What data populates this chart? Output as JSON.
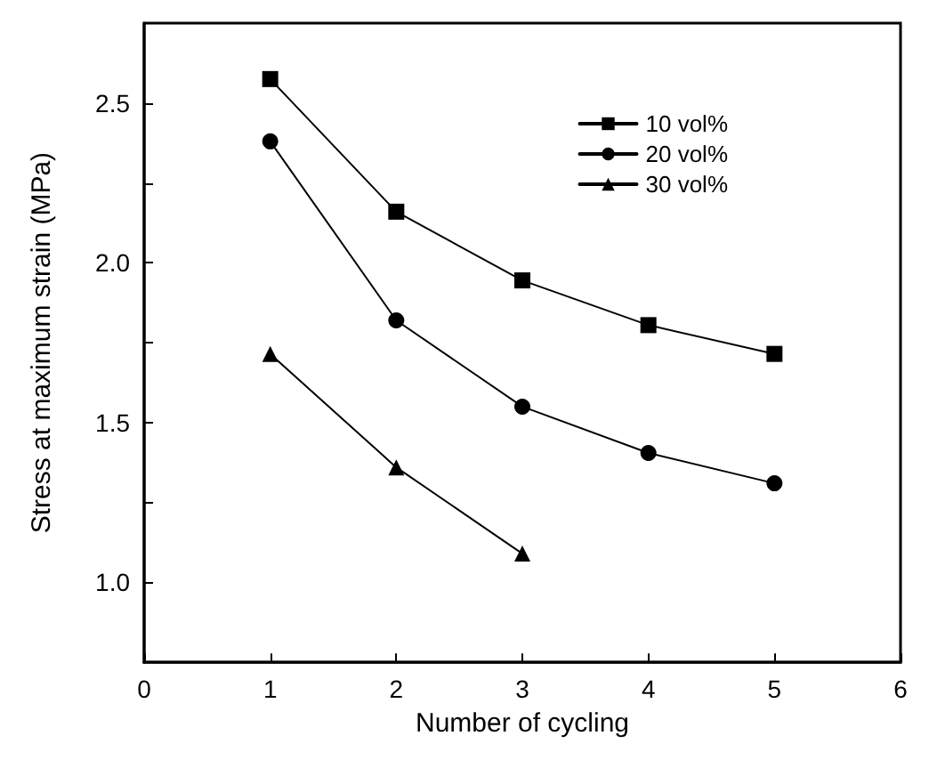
{
  "chart_data": {
    "type": "line",
    "xlabel": "Number of cycling",
    "ylabel": "Stress at maximum strain (MPa)",
    "xlim": [
      0,
      6
    ],
    "xticks": [
      0,
      1,
      2,
      3,
      4,
      5,
      6
    ],
    "ylim": [
      0.75,
      2.75
    ],
    "yticks": [
      {
        "value": 1,
        "label": "1.0"
      },
      {
        "value": 1.25,
        "label": null
      },
      1.5,
      {
        "value": 1.75,
        "label": null
      },
      {
        "value": 2,
        "label": "2.0"
      },
      {
        "value": 2.25,
        "label": null
      },
      2.5
    ],
    "grid": false,
    "legend": "top right",
    "line_style": "solid",
    "series": [
      {
        "name": "10 vol%",
        "color": "#000000",
        "marker": "square",
        "x": [
          1,
          2,
          3,
          4,
          5
        ],
        "values": [
          2.575,
          2.16,
          1.945,
          1.805,
          1.715
        ]
      },
      {
        "name": "20 vol%",
        "color": "#000000",
        "marker": "circle",
        "x": [
          1,
          2,
          3,
          4,
          5
        ],
        "values": [
          2.38,
          1.82,
          1.55,
          1.405,
          1.31
        ]
      },
      {
        "name": "30 vol%",
        "color": "#000000",
        "marker": "triangle",
        "x": [
          1,
          2,
          3
        ],
        "values": [
          1.715,
          1.36,
          1.09
        ]
      }
    ]
  }
}
